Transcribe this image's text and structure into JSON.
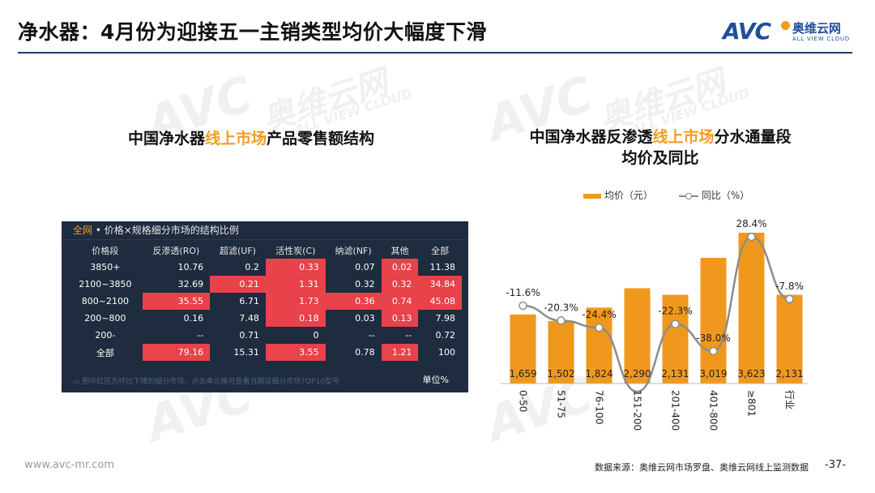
{
  "header": {
    "title": "净水器：4月份为迎接五一主销类型均价大幅度下滑",
    "logo_text": "AVC",
    "logo_cn": "奥维云网",
    "logo_en": "ALL VIEW CLOUD"
  },
  "watermark": {
    "text_cn": "奥维云网",
    "text_en": "ALL VIEW CLOUD",
    "text_avc": "AVC"
  },
  "left": {
    "title_pre": "中国净水器",
    "title_hl": "线上市场",
    "title_post": "产品零售额结构",
    "panel": {
      "scope": "全网",
      "heading": " • 价格×规格细分市场的结构比例",
      "columns": [
        "价格段",
        "反渗透(RO)",
        "超滤(UF)",
        "活性炭(C)",
        "纳滤(NF)",
        "其他",
        "全部"
      ],
      "rows": [
        {
          "label": "3850+",
          "cells": [
            "10.76",
            "0.2",
            "0.33",
            "0.07",
            "0.02",
            "11.38"
          ],
          "hi": [
            false,
            false,
            true,
            false,
            true,
            false
          ]
        },
        {
          "label": "2100~3850",
          "cells": [
            "32.69",
            "0.21",
            "1.31",
            "0.32",
            "0.32",
            "34.84"
          ],
          "hi": [
            false,
            true,
            true,
            false,
            true,
            true
          ]
        },
        {
          "label": "800~2100",
          "cells": [
            "35.55",
            "6.71",
            "1.73",
            "0.36",
            "0.74",
            "45.08"
          ],
          "hi": [
            true,
            false,
            true,
            true,
            true,
            true
          ]
        },
        {
          "label": "200~800",
          "cells": [
            "0.16",
            "7.48",
            "0.18",
            "0.03",
            "0.13",
            "7.98"
          ],
          "hi": [
            false,
            false,
            true,
            false,
            true,
            false
          ]
        },
        {
          "label": "200-",
          "cells": [
            "--",
            "0.71",
            "0",
            "--",
            "--",
            "0.72"
          ],
          "hi": [
            false,
            false,
            false,
            false,
            false,
            false
          ]
        },
        {
          "label": "全部",
          "cells": [
            "79.16",
            "15.31",
            "3.55",
            "0.78",
            "1.21",
            "100"
          ],
          "hi": [
            true,
            false,
            true,
            false,
            true,
            false
          ]
        }
      ],
      "footnote": "图中红区为环比下降的细分市场，点击单元格可查看当期该细分市场TOP10型号",
      "unit": "单位%"
    }
  },
  "right": {
    "title_line1_pre": "中国净水器反渗透",
    "title_line1_hl": "线上市场",
    "title_line1_post": "分水通量段",
    "title_line2": "均价及同比",
    "legend_bar": "均价（元）",
    "legend_line": "同比（%）"
  },
  "chart_data": {
    "type": "bar",
    "categories": [
      "0-50",
      "51-75",
      "76-100",
      "151-200",
      "201-400",
      "401-800",
      "≥801",
      "行业"
    ],
    "series": [
      {
        "name": "均价（元）",
        "type": "bar",
        "values": [
          1659,
          1502,
          1824,
          2290,
          2131,
          3019,
          3623,
          2131
        ],
        "labels": [
          "1,659",
          "1,502",
          "1,824",
          "2,290",
          "2,131",
          "3,019",
          "3,623",
          "2,131"
        ]
      },
      {
        "name": "同比（%）",
        "type": "line",
        "values": [
          -11.6,
          -20.3,
          -24.4,
          null,
          -22.3,
          -38.0,
          28.4,
          -7.8
        ],
        "labels": [
          "-11.6%",
          "-20.3%",
          "-24.4%",
          "",
          "-22.3%",
          "-38.0%",
          "28.4%",
          "-7.8%"
        ]
      }
    ],
    "colors": {
      "bar": "#f0981d",
      "line": "#8c8c8c"
    }
  },
  "footer": {
    "website": "www.avc-mr.com",
    "source": "数据来源：奥维云网市场罗盘、奥维云网线上监测数据",
    "page": "-37-"
  }
}
